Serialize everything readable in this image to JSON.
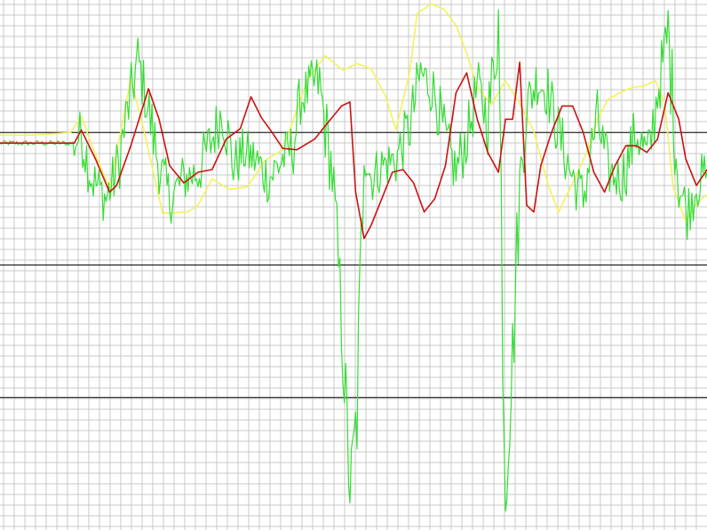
{
  "chart_data": {
    "type": "line",
    "title": "",
    "xlabel": "",
    "ylabel": "",
    "grid": true,
    "xlim": [
      0,
      100
    ],
    "ylim": [
      -3,
      1
    ],
    "colors": {
      "background": "#ffffff",
      "grid_minor": "#c8c8c8",
      "grid_major": "#000000",
      "yellow_series": "#f2f25a",
      "green_series": "#33dd33",
      "red_series": "#cc1111"
    },
    "major_lines": [
      0,
      -1,
      -2
    ],
    "series": [
      {
        "color": "#f2f25a",
        "x": [
          0,
          4.5,
          10,
          11.5,
          13.5,
          15.5,
          18.5,
          20.3,
          23,
          26.5,
          28,
          30,
          32.5,
          35,
          37.5,
          40,
          43.5,
          46,
          48.5,
          50.5,
          52.5,
          54.5,
          56,
          58,
          59,
          61,
          62.8,
          64.5,
          66,
          67.5,
          69.5,
          71.5,
          73.5,
          75.5,
          77.5,
          79,
          81,
          83,
          84.5,
          86,
          88,
          89.5,
          91,
          92.7,
          94,
          95.2,
          97,
          98.5,
          100
        ],
        "y": [
          -0.02,
          -0.02,
          0.0,
          0.12,
          -0.17,
          -0.42,
          0.4,
          0.03,
          -0.61,
          -0.6,
          -0.55,
          -0.35,
          -0.43,
          -0.41,
          -0.21,
          -0.13,
          0.4,
          0.58,
          0.47,
          0.52,
          0.48,
          0.28,
          0.02,
          0.47,
          0.9,
          0.97,
          0.93,
          0.81,
          0.6,
          0.34,
          0.21,
          0.39,
          0.22,
          0.01,
          -0.39,
          -0.6,
          -0.38,
          -0.15,
          0.1,
          0.25,
          0.31,
          0.34,
          0.35,
          0.39,
          0.22,
          -0.41,
          -0.67,
          -0.53,
          -0.47
        ]
      },
      {
        "color": "#33dd33",
        "noisy": true,
        "x": [
          0,
          10.5,
          11.5,
          13,
          15,
          16.5,
          18.2,
          19.5,
          20.7,
          22.5,
          24,
          26,
          28,
          30,
          31.5,
          33,
          34.5,
          36,
          38,
          40,
          41.5,
          42.5,
          45,
          47,
          48.3,
          49.5,
          50.5,
          51.5,
          52.5,
          54,
          56,
          58,
          59.5,
          61.5,
          63,
          64.5,
          66.5,
          67.5,
          69,
          70.5,
          71.5,
          72.5,
          73.5,
          74.5,
          76,
          77.5,
          79,
          80.7,
          82.5,
          83.5,
          84.5,
          86,
          88,
          90,
          91.7,
          93,
          94.5,
          96,
          97.2,
          98.5,
          100
        ],
        "y": [
          -0.08,
          -0.08,
          0.0,
          -0.35,
          -0.5,
          -0.3,
          0.2,
          0.55,
          0.25,
          -0.25,
          -0.5,
          -0.35,
          -0.3,
          -0.05,
          0.17,
          -0.25,
          -0.15,
          -0.2,
          -0.35,
          -0.2,
          -0.1,
          0.25,
          0.4,
          -0.3,
          -1.4,
          -2.7,
          -2.1,
          -0.1,
          -0.35,
          -0.25,
          -0.2,
          0.05,
          0.45,
          0.3,
          -0.05,
          -0.3,
          0.05,
          0.35,
          0.1,
          0.8,
          -2.7,
          -1.7,
          -0.4,
          0.2,
          0.4,
          0.3,
          0.0,
          -0.3,
          -0.5,
          -0.15,
          0.1,
          -0.3,
          -0.35,
          0.0,
          -0.2,
          0.3,
          0.75,
          -0.4,
          -0.6,
          -0.4,
          -0.3
        ]
      },
      {
        "color": "#cc1111",
        "x": [
          0,
          10.5,
          11.5,
          13.5,
          15.5,
          16.5,
          18.5,
          21,
          22.5,
          24,
          26,
          28,
          30,
          32,
          34,
          35.5,
          37,
          38.5,
          40,
          42,
          44.5,
          46,
          48.3,
          49.5,
          50.3,
          51.5,
          52.5,
          54,
          55.5,
          57,
          58.5,
          60,
          61.5,
          63,
          64.5,
          66,
          67.5,
          69,
          70.5,
          71.5,
          72.5,
          73.5,
          74.5,
          75.5,
          76.5,
          78,
          79.5,
          81,
          82.5,
          84,
          85.5,
          87,
          88.5,
          90,
          91.5,
          93,
          94.5,
          96,
          97,
          98.5,
          100
        ],
        "y": [
          -0.08,
          -0.08,
          0.02,
          -0.2,
          -0.45,
          -0.4,
          -0.1,
          0.33,
          0.1,
          -0.25,
          -0.38,
          -0.3,
          -0.28,
          -0.05,
          0.03,
          0.27,
          0.11,
          0.0,
          -0.12,
          -0.13,
          -0.05,
          0.05,
          0.2,
          0.23,
          -0.45,
          -0.8,
          -0.7,
          -0.5,
          -0.3,
          -0.28,
          -0.38,
          -0.6,
          -0.5,
          -0.25,
          0.3,
          0.45,
          0.1,
          -0.15,
          -0.3,
          0.1,
          0.1,
          0.53,
          -0.55,
          -0.6,
          -0.25,
          0.0,
          0.2,
          0.2,
          0.0,
          -0.3,
          -0.45,
          -0.25,
          -0.1,
          -0.1,
          -0.15,
          -0.05,
          0.3,
          0.1,
          -0.2,
          -0.4,
          -0.28
        ]
      }
    ]
  }
}
